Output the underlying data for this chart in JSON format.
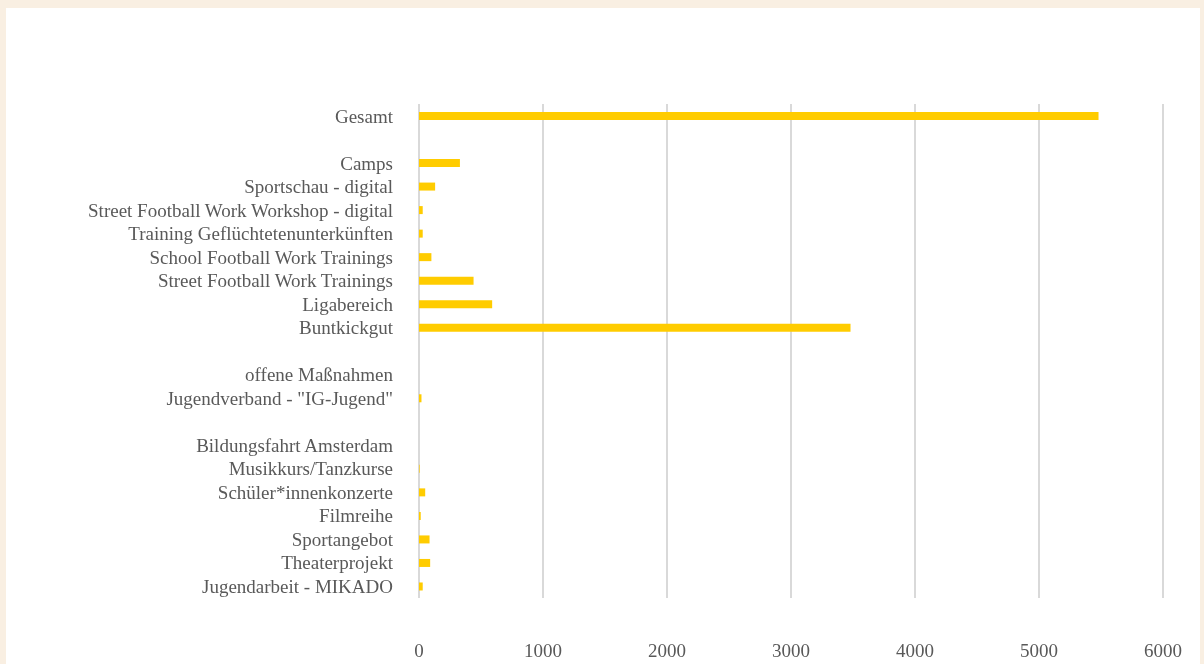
{
  "chart_data": {
    "type": "bar",
    "orientation": "horizontal",
    "categories": [
      "Gesamt",
      null,
      "Camps",
      "Sportschau - digital",
      "Street Football Work Workshop - digital",
      "Training Geflüchtetenunterkünften",
      "School Football Work Trainings",
      "Street Football Work Trainings",
      "Ligabereich",
      "Buntkickgut",
      null,
      "offene Maßnahmen",
      "Jugendverband - \"IG-Jugend\"",
      null,
      "Bildungsfahrt Amsterdam",
      "Musikkurs/Tanzkurse",
      "Schüler*innenkonzerte",
      "Filmreihe",
      "Sportangebot",
      "Theaterprojekt",
      "Jugendarbeit - MIKADO"
    ],
    "values": [
      5480,
      null,
      330,
      130,
      30,
      30,
      100,
      440,
      590,
      3480,
      null,
      0,
      20,
      null,
      0,
      5,
      50,
      14,
      85,
      90,
      30
    ],
    "color": "#ffcc00",
    "xlim": [
      0,
      6000
    ],
    "xticks": [
      0,
      1000,
      2000,
      3000,
      4000,
      5000,
      6000
    ],
    "grid": "x"
  }
}
